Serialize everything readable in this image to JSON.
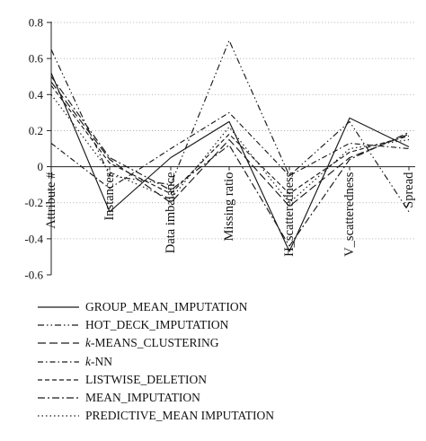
{
  "chart_data": {
    "type": "line",
    "categories": [
      "Attribute #",
      "Instances",
      "Data imbalance",
      "Missing ratio",
      "H_scatteredness",
      "V_scatteredness",
      "Spread"
    ],
    "ylim": [
      -0.6,
      0.8
    ],
    "yticks": [
      -0.6,
      -0.4,
      -0.2,
      0,
      0.2,
      0.4,
      0.6,
      0.8
    ],
    "ytick_labels": [
      "-0.6",
      "-0.4",
      "-0.2",
      "0",
      "0.2",
      "0.4",
      "0.6",
      "0.8"
    ],
    "grid": "horizontal dotted",
    "legend_position": "bottom",
    "series": [
      {
        "name_prefix": "",
        "name": "GROUP_MEAN_IMPUTATION",
        "dash": "solid",
        "values": [
          0.52,
          -0.25,
          0.05,
          0.25,
          -0.47,
          0.27,
          0.11
        ]
      },
      {
        "name_prefix": "",
        "name": "HOT_DECK_IMPUTATION",
        "dash": "dashdotdot",
        "values": [
          0.65,
          -0.05,
          -0.1,
          0.7,
          -0.05,
          0.25,
          -0.25
        ]
      },
      {
        "name_prefix": "k",
        "name": "-MEANS_CLUSTERING",
        "dash": "longdash",
        "values": [
          0.47,
          0.04,
          -0.2,
          0.15,
          -0.22,
          0.05,
          0.18
        ]
      },
      {
        "name_prefix": "k",
        "name": "-NN",
        "dash": "dashdot",
        "values": [
          0.13,
          -0.12,
          0.1,
          0.3,
          -0.05,
          0.13,
          0.1
        ]
      },
      {
        "name_prefix": "",
        "name": "LISTWISE_DELETION",
        "dash": "dashed",
        "values": [
          0.45,
          0.02,
          -0.15,
          0.18,
          -0.15,
          0.08,
          0.17
        ]
      },
      {
        "name_prefix": "",
        "name": "MEAN_IMPUTATION",
        "dash": "dashdot2",
        "values": [
          0.5,
          0.05,
          -0.13,
          0.12,
          -0.44,
          0.04,
          0.19
        ]
      },
      {
        "name_prefix": "",
        "name": "PREDICTIVE_MEAN IMPUTATION",
        "dash": "dotted",
        "values": [
          0.4,
          -0.03,
          -0.18,
          0.22,
          -0.2,
          0.1,
          0.15
        ]
      }
    ]
  }
}
